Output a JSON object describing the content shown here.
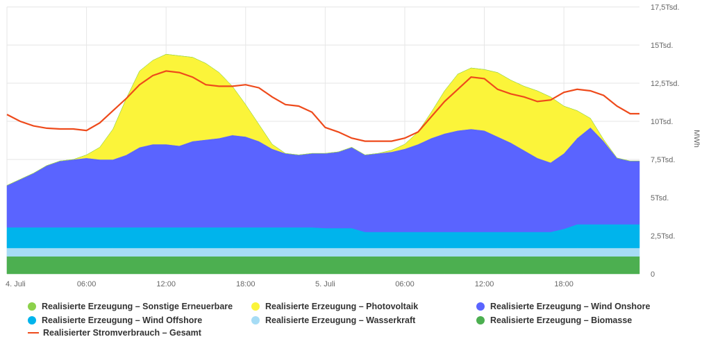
{
  "chart_data": {
    "type": "area",
    "stacked": true,
    "title": "",
    "ylabel": "MWh",
    "ylim": [
      0,
      17500
    ],
    "yticks": [
      "0",
      "2,5Tsd.",
      "5Tsd.",
      "7,5Tsd.",
      "10Tsd.",
      "12,5Tsd.",
      "15Tsd.",
      "17,5Tsd."
    ],
    "ytick_values": [
      0,
      2500,
      5000,
      7500,
      10000,
      12500,
      15000,
      17500
    ],
    "xticks": [
      "4. Juli",
      "06:00",
      "12:00",
      "18:00",
      "5. Juli",
      "06:00",
      "12:00",
      "18:00"
    ],
    "xtick_hours": [
      0,
      6,
      12,
      18,
      24,
      30,
      36,
      42
    ],
    "x_hours": [
      0,
      1,
      2,
      3,
      4,
      5,
      6,
      7,
      8,
      9,
      10,
      11,
      12,
      13,
      14,
      15,
      16,
      17,
      18,
      19,
      20,
      21,
      22,
      23,
      24,
      25,
      26,
      27,
      28,
      29,
      30,
      31,
      32,
      33,
      34,
      35,
      36,
      37,
      38,
      39,
      40,
      41,
      42,
      43,
      44,
      45,
      46,
      47
    ],
    "unit_scale": 1000,
    "grid": true,
    "legend_position": "bottom",
    "series": [
      {
        "name": "Realisierte Erzeugung – Biomasse",
        "color": "#4caf50",
        "values": [
          1.15,
          1.15,
          1.15,
          1.15,
          1.15,
          1.15,
          1.15,
          1.15,
          1.15,
          1.15,
          1.15,
          1.15,
          1.15,
          1.15,
          1.15,
          1.15,
          1.15,
          1.15,
          1.15,
          1.15,
          1.15,
          1.15,
          1.15,
          1.15,
          1.15,
          1.15,
          1.15,
          1.15,
          1.15,
          1.15,
          1.15,
          1.15,
          1.15,
          1.15,
          1.15,
          1.15,
          1.15,
          1.15,
          1.15,
          1.15,
          1.15,
          1.15,
          1.15,
          1.15,
          1.15,
          1.15,
          1.15,
          1.15
        ]
      },
      {
        "name": "Realisierte Erzeugung – Wasserkraft",
        "color": "#a6dcf5",
        "values": [
          0.55,
          0.55,
          0.55,
          0.55,
          0.55,
          0.55,
          0.55,
          0.55,
          0.55,
          0.55,
          0.55,
          0.55,
          0.55,
          0.55,
          0.55,
          0.55,
          0.55,
          0.55,
          0.55,
          0.55,
          0.55,
          0.55,
          0.55,
          0.55,
          0.55,
          0.55,
          0.55,
          0.55,
          0.55,
          0.55,
          0.55,
          0.55,
          0.55,
          0.55,
          0.55,
          0.55,
          0.55,
          0.55,
          0.55,
          0.55,
          0.55,
          0.55,
          0.55,
          0.55,
          0.55,
          0.55,
          0.55,
          0.55
        ]
      },
      {
        "name": "Realisierte Erzeugung – Wind Offshore",
        "color": "#00b4ec",
        "values": [
          1.35,
          1.35,
          1.35,
          1.35,
          1.35,
          1.35,
          1.35,
          1.35,
          1.35,
          1.35,
          1.35,
          1.35,
          1.35,
          1.35,
          1.35,
          1.35,
          1.35,
          1.35,
          1.35,
          1.35,
          1.35,
          1.35,
          1.35,
          1.35,
          1.3,
          1.3,
          1.3,
          1.05,
          1.05,
          1.05,
          1.05,
          1.05,
          1.05,
          1.05,
          1.05,
          1.05,
          1.05,
          1.05,
          1.05,
          1.05,
          1.05,
          1.05,
          1.25,
          1.55,
          1.55,
          1.55,
          1.55,
          1.55
        ]
      },
      {
        "name": "Realisierte Erzeugung – Wind Onshore",
        "color": "#5a64ff",
        "values": [
          2.75,
          3.15,
          3.55,
          4.05,
          4.35,
          4.45,
          4.55,
          4.45,
          4.45,
          4.75,
          5.25,
          5.45,
          5.45,
          5.35,
          5.65,
          5.75,
          5.85,
          6.05,
          5.95,
          5.65,
          5.15,
          4.85,
          4.75,
          4.85,
          4.9,
          5.0,
          5.3,
          5.05,
          5.15,
          5.25,
          5.45,
          5.75,
          6.15,
          6.45,
          6.65,
          6.75,
          6.65,
          6.25,
          5.85,
          5.35,
          4.85,
          4.55,
          4.95,
          5.65,
          6.35,
          5.45,
          4.35,
          4.15
        ]
      },
      {
        "name": "Realisierte Erzeugung – Photovoltaik",
        "color": "#fbf43a",
        "values": [
          0,
          0,
          0,
          0,
          0,
          0,
          0.2,
          0.8,
          2.0,
          3.7,
          5.0,
          5.5,
          5.9,
          5.9,
          5.5,
          5.0,
          4.3,
          3.2,
          2.1,
          1.1,
          0.3,
          0,
          0,
          0,
          0,
          0,
          0,
          0,
          0,
          0.1,
          0.3,
          0.8,
          1.7,
          2.8,
          3.7,
          4.0,
          4.0,
          4.2,
          4.1,
          4.2,
          4.4,
          4.3,
          3.1,
          1.8,
          0.6,
          0.1,
          0,
          0
        ]
      },
      {
        "name": "Realisierte Erzeugung – Sonstige Erneuerbare",
        "color": "#8cd14b",
        "values": [
          0,
          0,
          0,
          0,
          0,
          0,
          0,
          0,
          0,
          0,
          0,
          0,
          0,
          0,
          0,
          0,
          0,
          0,
          0,
          0,
          0,
          0,
          0,
          0,
          0,
          0,
          0,
          0,
          0,
          0,
          0,
          0,
          0,
          0,
          0,
          0,
          0,
          0,
          0,
          0,
          0,
          0,
          0,
          0,
          0,
          0,
          0,
          0
        ]
      }
    ],
    "line_series": {
      "name": "Realisierter Stromverbrauch – Gesamt",
      "color": "#ee4a1b",
      "values": [
        10.45,
        10.0,
        9.7,
        9.55,
        9.5,
        9.5,
        9.4,
        9.9,
        10.7,
        11.5,
        12.4,
        13.0,
        13.3,
        13.2,
        12.9,
        12.4,
        12.3,
        12.3,
        12.4,
        12.2,
        11.6,
        11.1,
        11.0,
        10.6,
        9.6,
        9.3,
        8.9,
        8.7,
        8.7,
        8.7,
        8.9,
        9.3,
        10.3,
        11.3,
        12.1,
        12.9,
        12.8,
        12.1,
        11.8,
        11.6,
        11.3,
        11.4,
        11.9,
        12.1,
        12.0,
        11.7,
        11.0,
        10.5
      ]
    },
    "legend": [
      {
        "label": "Realisierte Erzeugung – Sonstige Erneuerbare",
        "color": "#8cd14b",
        "kind": "dot"
      },
      {
        "label": "Realisierte Erzeugung – Photovoltaik",
        "color": "#fbf43a",
        "kind": "dot"
      },
      {
        "label": "Realisierte Erzeugung – Wind Onshore",
        "color": "#5a64ff",
        "kind": "dot"
      },
      {
        "label": "Realisierte Erzeugung – Wind Offshore",
        "color": "#00b4ec",
        "kind": "dot"
      },
      {
        "label": "Realisierte Erzeugung – Wasserkraft",
        "color": "#a6dcf5",
        "kind": "dot"
      },
      {
        "label": "Realisierte Erzeugung – Biomasse",
        "color": "#4caf50",
        "kind": "dot"
      },
      {
        "label": "Realisierter Stromverbrauch – Gesamt",
        "color": "#ee4a1b",
        "kind": "line"
      }
    ]
  }
}
